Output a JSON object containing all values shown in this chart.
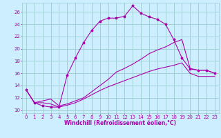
{
  "background_color": "#cceeff",
  "grid_color": "#99cccc",
  "line_color": "#aa00aa",
  "xlim": [
    -0.5,
    23.5
  ],
  "ylim": [
    9.5,
    27.5
  ],
  "yticks": [
    10,
    12,
    14,
    16,
    18,
    20,
    22,
    24,
    26
  ],
  "xticks": [
    0,
    1,
    2,
    3,
    4,
    5,
    6,
    7,
    8,
    9,
    10,
    11,
    12,
    13,
    14,
    15,
    16,
    17,
    18,
    19,
    20,
    21,
    22,
    23
  ],
  "xlabel": "Windchill (Refroidissement éolien,°C)",
  "tick_fontsize": 5.0,
  "xlabel_fontsize": 5.5,
  "line1_x": [
    0,
    1,
    2,
    3,
    4,
    5,
    6,
    7,
    8,
    9,
    10,
    11,
    12,
    13,
    14,
    15,
    16,
    17,
    18,
    19,
    20,
    21,
    22,
    23
  ],
  "line1_y": [
    13.3,
    11.2,
    10.7,
    10.5,
    10.5,
    15.7,
    18.5,
    21.0,
    23.0,
    24.5,
    25.0,
    25.0,
    25.3,
    27.0,
    25.8,
    25.2,
    24.8,
    24.0,
    21.5,
    18.5,
    16.7,
    16.5,
    16.5,
    16.0
  ],
  "line2_x": [
    0,
    1,
    2,
    3,
    4,
    5,
    6,
    7,
    8,
    9,
    10,
    11,
    12,
    13,
    14,
    15,
    16,
    17,
    18,
    19,
    20,
    21,
    22,
    23
  ],
  "line2_y": [
    13.3,
    11.2,
    11.5,
    11.8,
    10.7,
    11.0,
    11.5,
    12.0,
    13.0,
    14.0,
    15.0,
    16.2,
    16.8,
    17.5,
    18.3,
    19.2,
    19.8,
    20.3,
    21.0,
    21.5,
    16.8,
    16.5,
    16.5,
    16.0
  ],
  "line3_x": [
    0,
    1,
    2,
    3,
    4,
    5,
    6,
    7,
    8,
    9,
    10,
    11,
    12,
    13,
    14,
    15,
    16,
    17,
    18,
    19,
    20,
    21,
    22,
    23
  ],
  "line3_y": [
    13.3,
    11.2,
    11.2,
    11.0,
    10.5,
    10.8,
    11.2,
    11.8,
    12.5,
    13.2,
    13.8,
    14.3,
    14.8,
    15.3,
    15.8,
    16.3,
    16.7,
    17.0,
    17.3,
    17.7,
    16.0,
    15.5,
    15.5,
    15.5
  ]
}
